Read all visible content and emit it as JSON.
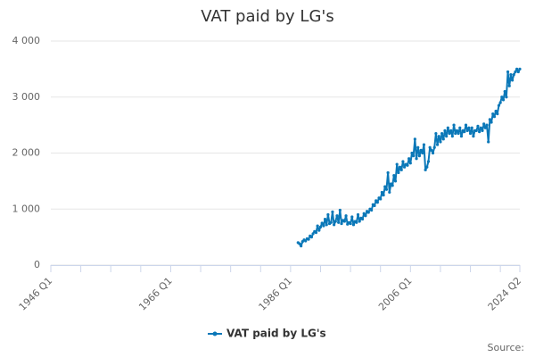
{
  "chart_data": {
    "type": "line",
    "title": "VAT paid by LG's",
    "source": "Source:",
    "categories": [
      "1946 Q1",
      null,
      null,
      null,
      null,
      null,
      null,
      null,
      null,
      null,
      null,
      null,
      null,
      null,
      null,
      null,
      null,
      null,
      null,
      null,
      null,
      null,
      null,
      null,
      null,
      null,
      null,
      null,
      null,
      null,
      null,
      null,
      null,
      null,
      null,
      null,
      null,
      null,
      null,
      null,
      null,
      null,
      null,
      null,
      null,
      null,
      null,
      null,
      null,
      null,
      null,
      null,
      null,
      null,
      null,
      null,
      null,
      null,
      null,
      null,
      null,
      null,
      null,
      null,
      null,
      null,
      null,
      null,
      null,
      null,
      null,
      null,
      null,
      null,
      null,
      null,
      null,
      null,
      null,
      null,
      "1966 Q1",
      null,
      null,
      null,
      null,
      null,
      null,
      null,
      null,
      null,
      null,
      null,
      null,
      null,
      null,
      null,
      null,
      null,
      null,
      null,
      null,
      null,
      null,
      null,
      null,
      null,
      null,
      null,
      null,
      null,
      null,
      null,
      null,
      null,
      null,
      null,
      null,
      null,
      null,
      null,
      null,
      null,
      null,
      null,
      null,
      null,
      null,
      null,
      null,
      null,
      null,
      null,
      null,
      null,
      null,
      null,
      null,
      null,
      null,
      null,
      null,
      null,
      null,
      null,
      null,
      null,
      null,
      null,
      null,
      null,
      null,
      null,
      null,
      null,
      null,
      null,
      null,
      null,
      null,
      null,
      "1986 Q1",
      null,
      null,
      null,
      null,
      null,
      null,
      null,
      null,
      null,
      null,
      null,
      null,
      null,
      null,
      null,
      null,
      null,
      null,
      null,
      null,
      null,
      null,
      null,
      null,
      null,
      null,
      null,
      null,
      null,
      null,
      null,
      null,
      null,
      null,
      null,
      null,
      null,
      null,
      null,
      null,
      null,
      null,
      null,
      null,
      null,
      null,
      null,
      null,
      null,
      null,
      null,
      null,
      null,
      null,
      null,
      null,
      null,
      null,
      null,
      null,
      null,
      null,
      null,
      null,
      null,
      null,
      null,
      null,
      null,
      null,
      null,
      null,
      null,
      null,
      null,
      null,
      null,
      null,
      null,
      "2006 Q1",
      null,
      null,
      null,
      null,
      null,
      null,
      null,
      null,
      null,
      null,
      null,
      null,
      null,
      null,
      null,
      null,
      null,
      null,
      null,
      null,
      null,
      null,
      null,
      null,
      null,
      null,
      null,
      null,
      null,
      null,
      null,
      null,
      null,
      null,
      null,
      null,
      null,
      null,
      null,
      null,
      null,
      null,
      null,
      null,
      null,
      null,
      null,
      null,
      null,
      null,
      null,
      null,
      null,
      null,
      null,
      null,
      null,
      null,
      null,
      null,
      null,
      null,
      null,
      null,
      null,
      null,
      null,
      null,
      null,
      null,
      null,
      null,
      "2024 Q2"
    ],
    "series": [
      {
        "name": "VAT paid by LG's",
        "color": "#0b78b8",
        "values": [
          null,
          null,
          null,
          null,
          null,
          null,
          null,
          null,
          null,
          null,
          null,
          null,
          null,
          null,
          null,
          null,
          null,
          null,
          null,
          null,
          null,
          null,
          null,
          null,
          null,
          null,
          null,
          null,
          null,
          null,
          null,
          null,
          null,
          null,
          null,
          null,
          null,
          null,
          null,
          null,
          null,
          null,
          null,
          null,
          null,
          null,
          null,
          null,
          null,
          null,
          null,
          null,
          null,
          null,
          null,
          null,
          null,
          null,
          null,
          null,
          null,
          null,
          null,
          null,
          null,
          null,
          null,
          null,
          null,
          null,
          null,
          null,
          null,
          null,
          null,
          null,
          null,
          null,
          null,
          null,
          null,
          null,
          null,
          null,
          null,
          null,
          null,
          null,
          null,
          null,
          null,
          null,
          null,
          null,
          null,
          null,
          null,
          null,
          null,
          null,
          null,
          null,
          null,
          null,
          null,
          null,
          null,
          null,
          null,
          null,
          null,
          null,
          null,
          null,
          null,
          null,
          null,
          null,
          null,
          null,
          null,
          null,
          null,
          null,
          null,
          null,
          null,
          null,
          null,
          null,
          null,
          null,
          null,
          null,
          null,
          null,
          null,
          null,
          null,
          null,
          null,
          null,
          null,
          null,
          null,
          null,
          null,
          null,
          null,
          null,
          null,
          null,
          null,
          null,
          null,
          null,
          null,
          null,
          null,
          null,
          null,
          null,
          null,
          null,
          null,
          400,
          380,
          340,
          420,
          450,
          430,
          470,
          460,
          520,
          500,
          560,
          600,
          580,
          700,
          620,
          680,
          750,
          700,
          820,
          720,
          900,
          740,
          760,
          950,
          720,
          780,
          880,
          760,
          980,
          740,
          800,
          780,
          880,
          730,
          760,
          740,
          860,
          720,
          780,
          760,
          900,
          780,
          840,
          820,
          920,
          880,
          960,
          940,
          1000,
          980,
          1080,
          1060,
          1150,
          1120,
          1200,
          1180,
          1300,
          1250,
          1400,
          1350,
          1650,
          1300,
          1450,
          1420,
          1600,
          1500,
          1800,
          1650,
          1750,
          1700,
          1850,
          1750,
          1800,
          1780,
          1900,
          1820,
          2000,
          1950,
          2250,
          1900,
          2100,
          1950,
          2050,
          2000,
          2150,
          1700,
          1750,
          1850,
          2100,
          2050,
          2000,
          2100,
          2350,
          2150,
          2300,
          2200,
          2350,
          2250,
          2400,
          2300,
          2450,
          2350,
          2400,
          2300,
          2500,
          2350,
          2400,
          2350,
          2450,
          2300,
          2400,
          2380,
          2500,
          2400,
          2450,
          2350,
          2450,
          2300,
          2400,
          2400,
          2480,
          2380,
          2450,
          2400,
          2520,
          2450,
          2500,
          2200,
          2600,
          2550,
          2700,
          2650,
          2750,
          2700,
          2850,
          2900,
          3000,
          2950,
          3100,
          3000,
          3450,
          3200,
          3400,
          3300,
          3400,
          3450,
          3500,
          3450,
          3500
        ]
      }
    ],
    "ylim": [
      0,
      4000
    ],
    "yticks": [
      0,
      {
        "value": 1000,
        "label": "1 000"
      },
      {
        "value": 2000,
        "label": "2 000"
      },
      {
        "value": 3000,
        "label": "3 000"
      },
      {
        "value": 4000,
        "label": "4 000"
      }
    ],
    "grid": true,
    "legend": "bottom"
  }
}
